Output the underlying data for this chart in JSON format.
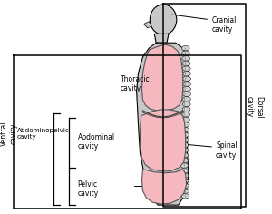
{
  "bg_color": "#ffffff",
  "body_fill": "#c8c8c8",
  "cavity_fill": "#f5b8be",
  "line_color": "#000000",
  "spine_fill": "#d0d0d0",
  "text_color": "#000000",
  "fig_width": 3.0,
  "fig_height": 2.36,
  "labels": {
    "cranial_cavity": "Cranial\ncavity",
    "dorsal_cavity": "Dorsal\ncavity",
    "ventral_cavity": "Ventral\ncavity",
    "thoracic_cavity": "Thoracic\ncavity",
    "abdominopelvic_cavity": "Abdominopelvic\ncavity",
    "abdominal_cavity": "Abdominal\ncavity",
    "pelvic_cavity": "Pelvic\ncavity",
    "spinal_cavity": "Spinal\ncavity"
  }
}
